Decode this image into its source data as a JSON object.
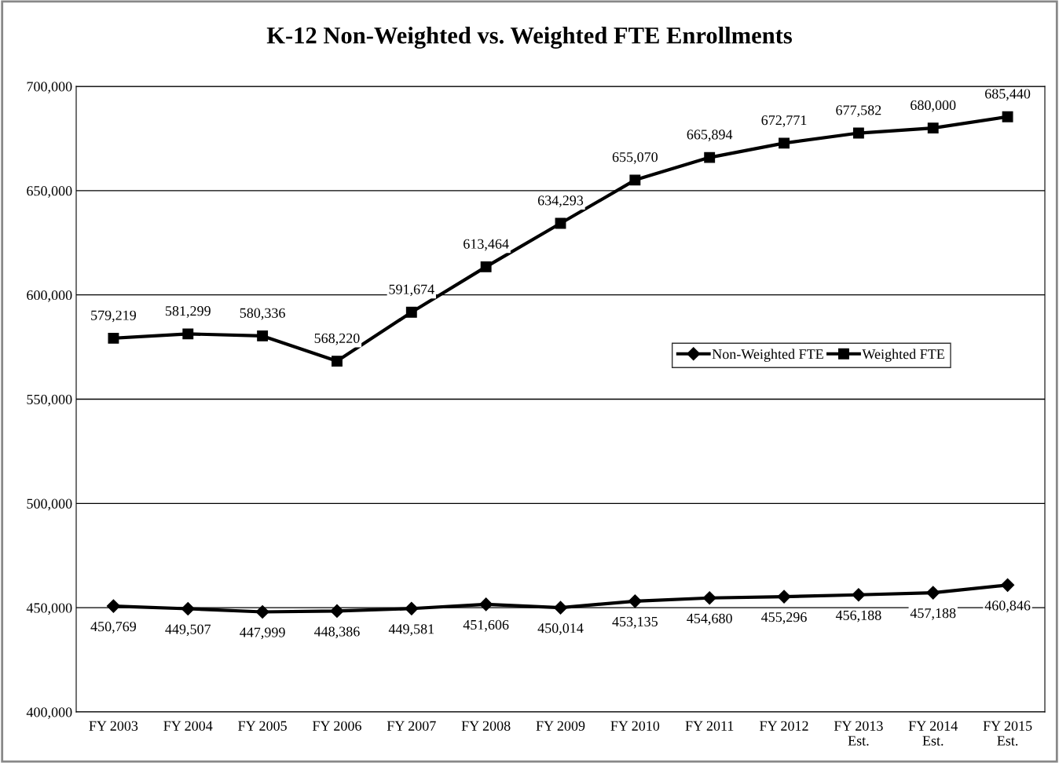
{
  "chart_data": {
    "type": "line",
    "title": "K-12 Non-Weighted vs. Weighted FTE Enrollments",
    "categories": [
      "FY 2003",
      "FY 2004",
      "FY 2005",
      "FY 2006",
      "FY 2007",
      "FY 2008",
      "FY 2009",
      "FY 2010",
      "FY 2011",
      "FY 2012",
      "FY 2013\nEst.",
      "FY 2014\nEst.",
      "FY 2015\nEst."
    ],
    "series": [
      {
        "name": "Non-Weighted FTE",
        "color": "#000000",
        "marker": "diamond",
        "values": [
          450769,
          449507,
          447999,
          448386,
          449581,
          451606,
          450014,
          453135,
          454680,
          455296,
          456188,
          457188,
          460846
        ],
        "value_labels": [
          "450,769",
          "449,507",
          "447,999",
          "448,386",
          "449,581",
          "451,606",
          "450,014",
          "453,135",
          "454,680",
          "455,296",
          "456,188",
          "457,188",
          "460,846"
        ]
      },
      {
        "name": "Weighted FTE",
        "color": "#000000",
        "marker": "square",
        "values": [
          579219,
          581299,
          580336,
          568220,
          591674,
          613464,
          634293,
          655070,
          665894,
          672771,
          677582,
          680000,
          685440
        ],
        "value_labels": [
          "579,219",
          "581,299",
          "580,336",
          "568,220",
          "591,674",
          "613,464",
          "634,293",
          "655,070",
          "665,894",
          "672,771",
          "677,582",
          "680,000",
          "685,440"
        ]
      }
    ],
    "ylim": [
      400000,
      700000
    ],
    "yticks": [
      {
        "value": 400000,
        "label": "400,000"
      },
      {
        "value": 450000,
        "label": "450,000"
      },
      {
        "value": 500000,
        "label": "500,000"
      },
      {
        "value": 550000,
        "label": "550,000"
      },
      {
        "value": 600000,
        "label": "600,000"
      },
      {
        "value": 650000,
        "label": "650,000"
      },
      {
        "value": 700000,
        "label": "700,000"
      }
    ],
    "grid": "y",
    "legend": "center right",
    "line_style": "solid"
  }
}
